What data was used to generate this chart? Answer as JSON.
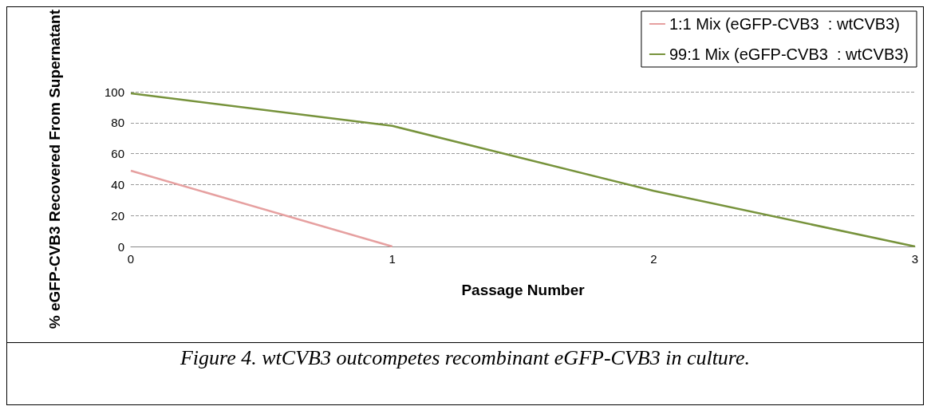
{
  "chart_data": {
    "type": "line",
    "xlabel": "Passage Number",
    "ylabel": "% eGFP-CVB3 Recovered From Supernatant",
    "categories": [
      "0",
      "1",
      "2",
      "3"
    ],
    "series": [
      {
        "name": "1:1 Mix (eGFP-CVB3  : wtCVB3)",
        "color": "#e6a0a0",
        "values": [
          49,
          0,
          null,
          null
        ]
      },
      {
        "name": "99:1 Mix (eGFP-CVB3  : wtCVB3)",
        "color": "#77933c",
        "values": [
          99,
          78,
          36,
          0
        ]
      }
    ],
    "ylim": [
      0,
      100
    ],
    "yticks": [
      0,
      20,
      40,
      60,
      80,
      100
    ],
    "grid": "y",
    "legend": "top right",
    "marker": "none",
    "line_style": "solid",
    "annotations": [
      "Figure 4. wtCVB3 outcompetes recombinant eGFP-CVB3 in culture."
    ]
  }
}
